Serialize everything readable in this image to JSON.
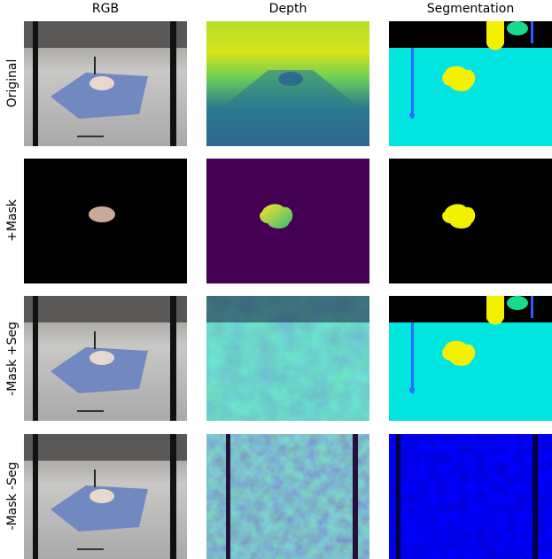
{
  "columns": [
    "RGB",
    "Depth",
    "Segmentation"
  ],
  "rows": [
    "Original",
    "+Mask",
    "-Mask +Seg",
    "-Mask -Seg"
  ]
}
